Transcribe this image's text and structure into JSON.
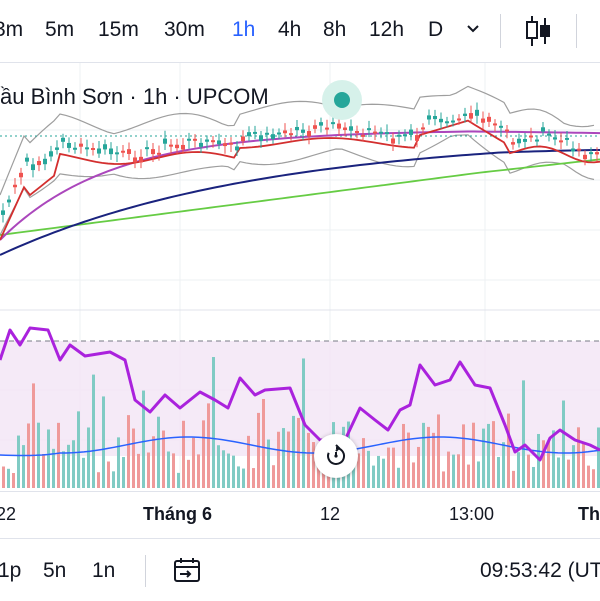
{
  "toolbar": {
    "timeframes": [
      {
        "label": "3m",
        "active": false
      },
      {
        "label": "5m",
        "active": false
      },
      {
        "label": "15m",
        "active": false
      },
      {
        "label": "30m",
        "active": false
      },
      {
        "label": "1h",
        "active": true
      },
      {
        "label": "4h",
        "active": false
      },
      {
        "label": "8h",
        "active": false
      },
      {
        "label": "12h",
        "active": false
      },
      {
        "label": "D",
        "active": false
      }
    ],
    "dropdown_icon": "chevron-down-icon",
    "chart_type_icon": "candles-icon",
    "active_color": "#2962ff"
  },
  "legend": {
    "text": "ầu Bình Sơn · 1h · UPCOM",
    "status_color": "#26a69a"
  },
  "x_axis": {
    "labels": [
      "22",
      "Tháng 6",
      "12",
      "13:00",
      "Thá"
    ]
  },
  "reset_button": {
    "icon": "reset-icon"
  },
  "bottom_bar": {
    "ranges": [
      "1p",
      "5n",
      "1n"
    ],
    "goto_icon": "calendar-goto-icon",
    "clock": "09:53:42 (UT"
  },
  "colors": {
    "up": "#26a69a",
    "down": "#ef5350",
    "ma_fast": "#d32f2f",
    "ma_mid": "#ab47bc",
    "ma_slow": "#1a237e",
    "ma_long": "#66cc44",
    "bollinger": "#9e9e9e",
    "oscillator": "#aa22dd",
    "volume_ma": "#2962ff"
  }
}
